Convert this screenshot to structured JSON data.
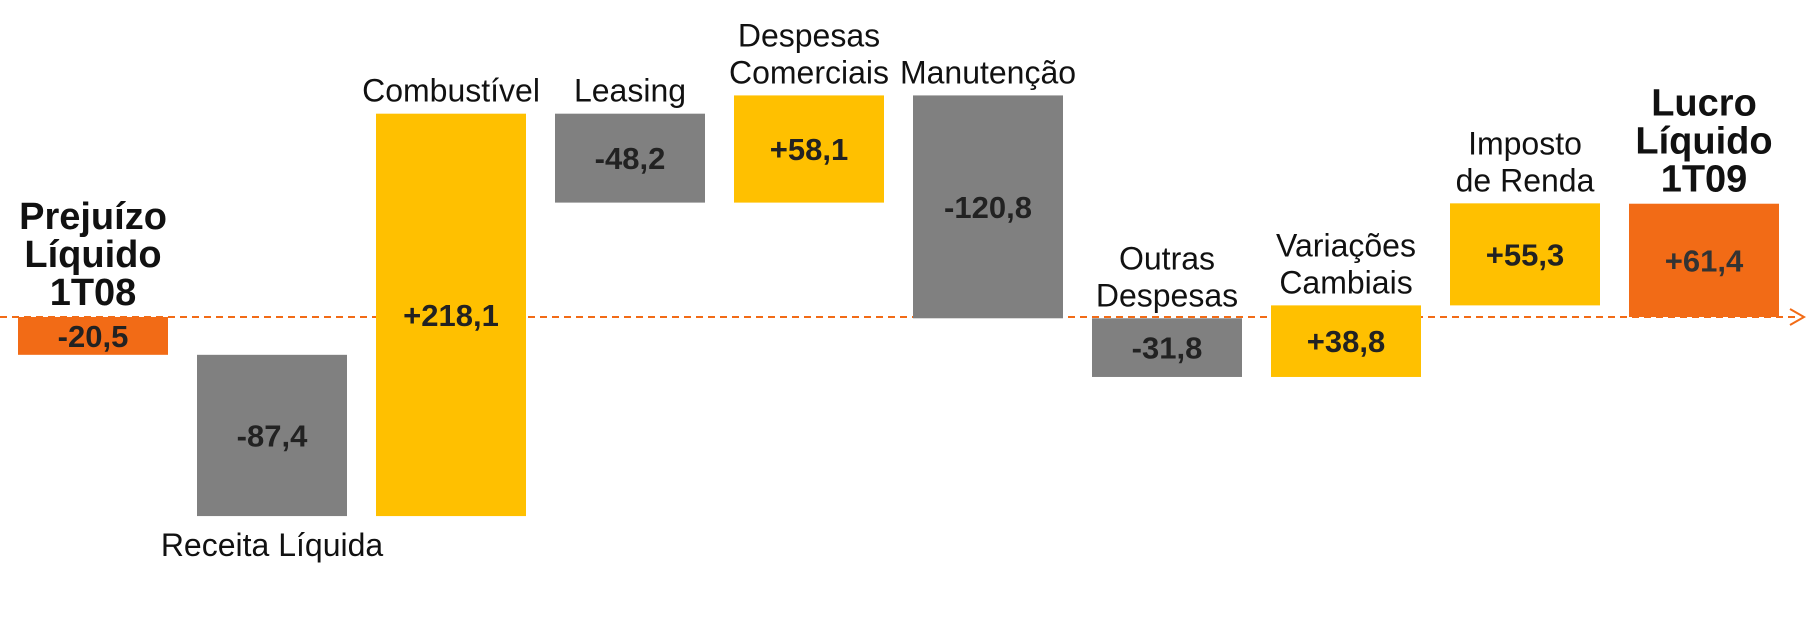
{
  "chart_data": {
    "type": "waterfall",
    "categories": [
      [
        "Prejuízo",
        "Líquido",
        "1T08"
      ],
      [
        "Receita Líquida"
      ],
      [
        "Combustível"
      ],
      [
        "Leasing"
      ],
      [
        "Despesas",
        "Comerciais"
      ],
      [
        "Manutenção"
      ],
      [
        "Outras",
        "Despesas"
      ],
      [
        "Variações",
        "Cambiais"
      ],
      [
        "Imposto",
        "de Renda"
      ],
      [
        "Lucro",
        "Líquido",
        "1T09"
      ]
    ],
    "values": [
      -20.5,
      -87.4,
      218.1,
      -48.2,
      58.1,
      -120.8,
      -31.8,
      38.8,
      55.3,
      61.4
    ],
    "value_labels": [
      "-20,5",
      "-87,4",
      "+218,1",
      "-48,2",
      "+58,1",
      "-120,8",
      "-31,8",
      "+38,8",
      "+55,3",
      "+61,4"
    ],
    "colors": [
      "#f26b16",
      "#808080",
      "#ffc000",
      "#808080",
      "#ffc000",
      "#808080",
      "#808080",
      "#ffc000",
      "#ffc000",
      "#f26b16"
    ],
    "baseline_color": "#f26b16"
  }
}
